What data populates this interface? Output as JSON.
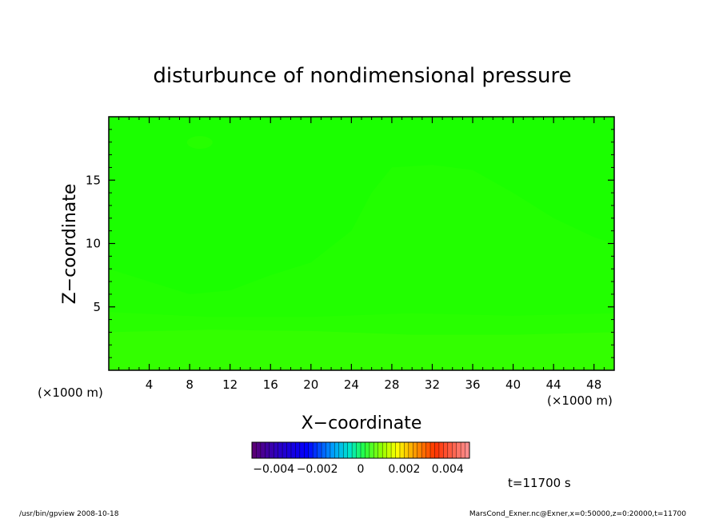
{
  "chart_data": {
    "type": "heatmap",
    "title": "disturbunce of nondimensional pressure",
    "xlabel": "X−coordinate",
    "ylabel": "Z−coordinate",
    "x_unit_left": "(×1000 m)",
    "x_unit_right": "(×1000 m)",
    "xlim": [
      0,
      50
    ],
    "ylim": [
      0,
      20
    ],
    "x_ticks": [
      4,
      8,
      12,
      16,
      20,
      24,
      28,
      32,
      36,
      40,
      44,
      48
    ],
    "y_ticks": [
      5,
      10,
      15
    ],
    "fill_layers": [
      {
        "z": 0.0011,
        "color": "#33ff00",
        "boundary": [
          [
            0,
            3
          ],
          [
            10,
            3.2
          ],
          [
            20,
            3.1
          ],
          [
            30,
            2.8
          ],
          [
            40,
            2.8
          ],
          [
            50,
            3
          ]
        ]
      },
      {
        "z": 0.0009,
        "color": "#28ff00",
        "boundary": [
          [
            0,
            4.6
          ],
          [
            10,
            4.2
          ],
          [
            20,
            4.2
          ],
          [
            30,
            4.5
          ],
          [
            40,
            4.3
          ],
          [
            50,
            4.5
          ]
        ]
      },
      {
        "z": 0.0007,
        "color": "#22ff00",
        "boundary": [
          [
            0,
            8
          ],
          [
            4,
            7
          ],
          [
            8,
            6
          ],
          [
            12,
            6.3
          ],
          [
            16,
            7.5
          ],
          [
            20,
            8.5
          ],
          [
            24,
            11
          ],
          [
            26,
            14
          ],
          [
            28,
            16
          ],
          [
            32,
            16.2
          ],
          [
            36,
            15.8
          ],
          [
            40,
            14
          ],
          [
            44,
            12
          ],
          [
            48,
            10.5
          ],
          [
            50,
            10
          ]
        ]
      },
      {
        "z": 0.0006,
        "color": "#1bff00",
        "boundary": [
          [
            0,
            20
          ],
          [
            50,
            20
          ]
        ]
      }
    ],
    "weak_regions": [
      {
        "x": [
          8,
          10,
          10,
          8
        ],
        "z": [
          18,
          18.2,
          18,
          17.7
        ],
        "color": "#26ff00"
      },
      {
        "x": [
          22,
          28,
          34,
          40
        ],
        "z": [
          7,
          7.6,
          7.8,
          7
        ]
      }
    ],
    "colorbar": {
      "levels_from": -0.005,
      "levels_to": 0.005,
      "tick_labels": [
        "−0.004",
        "−0.002",
        "0",
        "0.002",
        "0.004"
      ],
      "tick_values": [
        -0.004,
        -0.002,
        0,
        0.002,
        0.004
      ]
    },
    "time_label": "t=11700 s"
  },
  "footer": {
    "left": "/usr/bin/gpview   2008-10-18",
    "right": "MarsCond_Exner.nc@Exner,x=0:50000,z=0:20000,t=11700"
  }
}
